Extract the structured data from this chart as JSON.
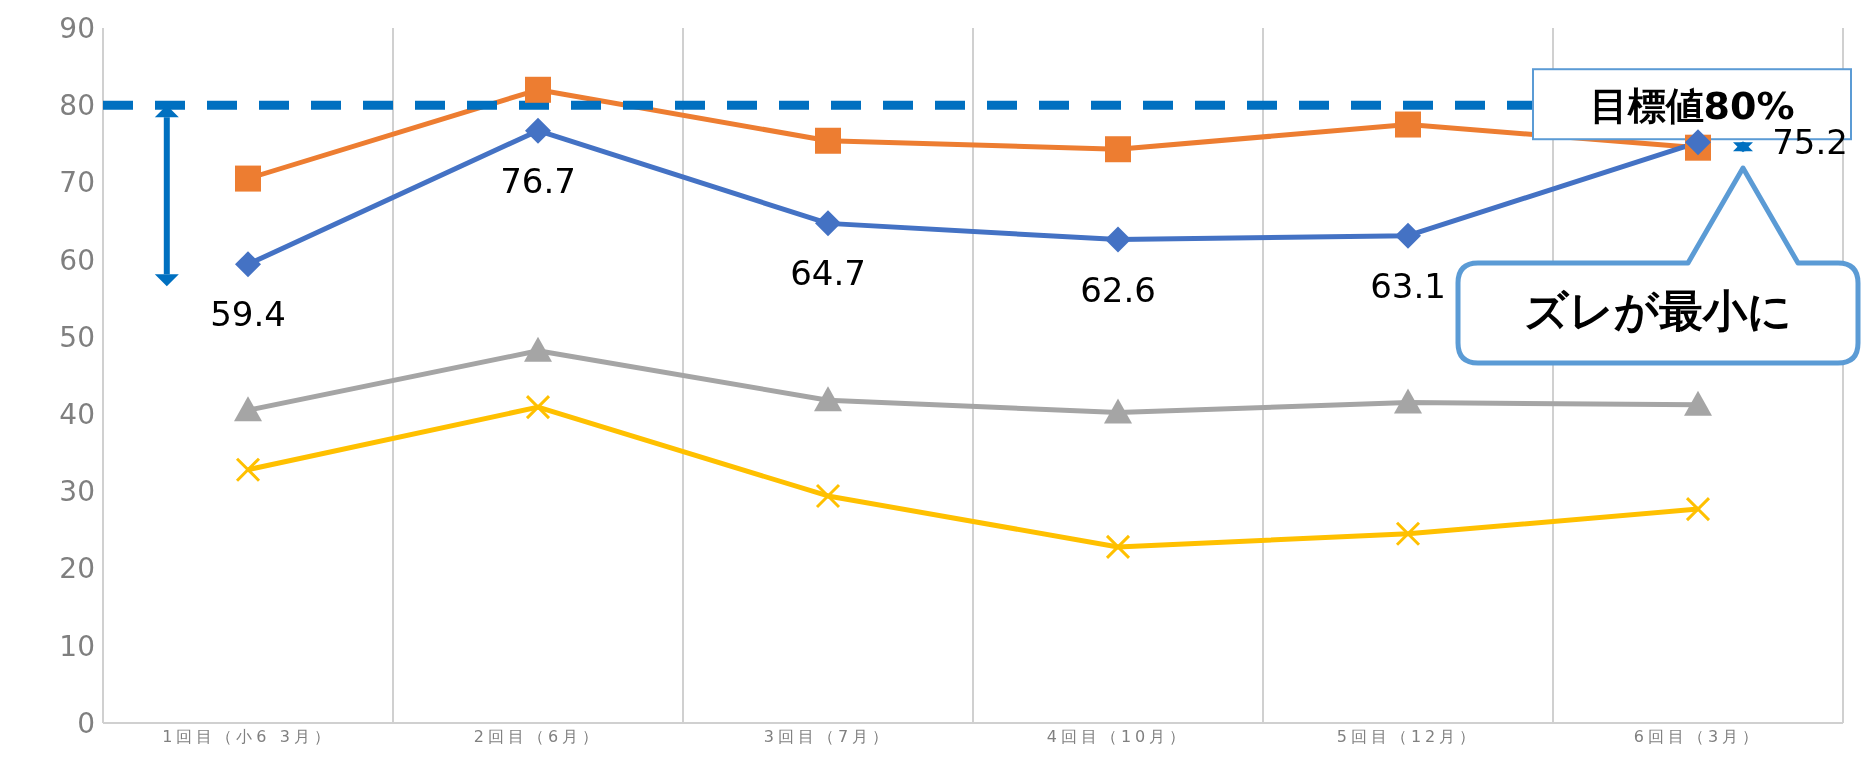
{
  "chart_data": {
    "type": "line",
    "categories": [
      "1回目（小6 3月）",
      "2回目（6月）",
      "3回目（7月）",
      "4回目（10月）",
      "5回目（12月）",
      "6回目（3月）"
    ],
    "ylim": [
      0,
      90
    ],
    "yticks": [
      0,
      10,
      20,
      30,
      40,
      50,
      60,
      70,
      80,
      90
    ],
    "grid": "x",
    "series": [
      {
        "color": "#4472c4",
        "marker": "diamond",
        "values": [
          59.4,
          76.7,
          64.7,
          62.6,
          63.1,
          75.2
        ],
        "value_labels": [
          "59.4",
          "76.7",
          "64.7",
          "62.6",
          "63.1",
          "75.2"
        ]
      },
      {
        "color": "#ed7d31",
        "marker": "square",
        "values": [
          70.5,
          82,
          75.4,
          74.3,
          77.5,
          74.5
        ]
      },
      {
        "color": "#a5a5a5",
        "marker": "triangle",
        "values": [
          40.5,
          48.2,
          41.8,
          40.2,
          41.5,
          41.2
        ]
      },
      {
        "color": "#ffc000",
        "marker": "cross",
        "values": [
          32.8,
          40.9,
          29.4,
          22.8,
          24.5,
          27.7
        ]
      }
    ],
    "ref_lines": [
      {
        "axis": "y",
        "value": 80,
        "label": "目標値80%",
        "color": "#0070c0",
        "line_style": "dashed"
      }
    ],
    "annotations": [
      "ズレが最小に"
    ]
  }
}
